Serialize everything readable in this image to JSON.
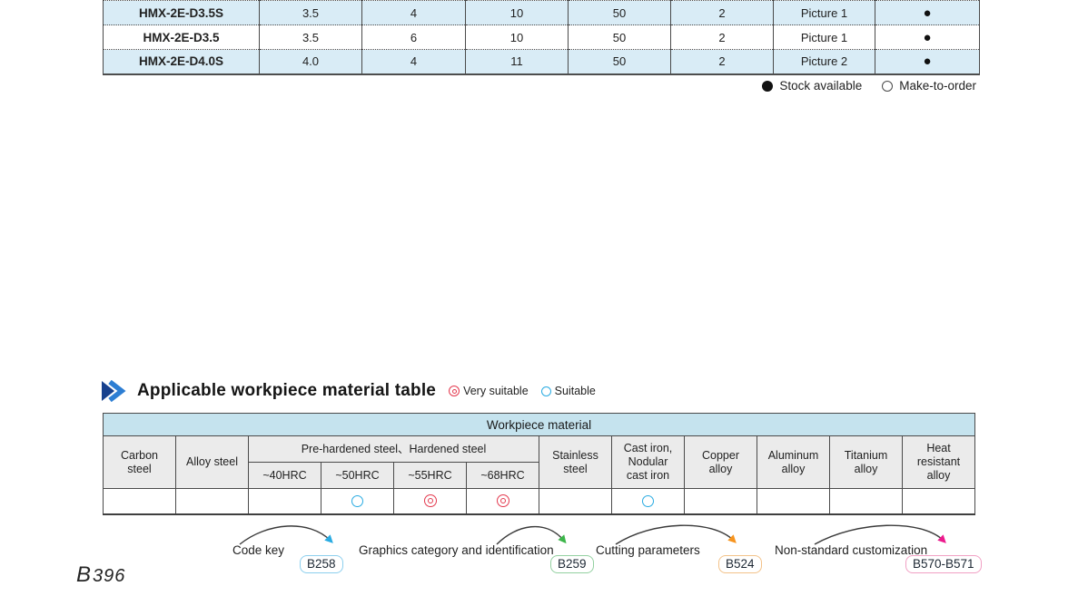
{
  "page": {
    "number_prefix": "B",
    "number": "396"
  },
  "product_table": {
    "rows": [
      {
        "model": "HMX-2E-D3.5S",
        "values": [
          "3.5",
          "4",
          "10",
          "50",
          "2",
          "Picture 1"
        ],
        "stock": "●"
      },
      {
        "model": "HMX-2E-D3.5",
        "values": [
          "3.5",
          "6",
          "10",
          "50",
          "2",
          "Picture 1"
        ],
        "stock": "●"
      },
      {
        "model": "HMX-2E-D4.0S",
        "values": [
          "4.0",
          "4",
          "11",
          "50",
          "2",
          "Picture 2"
        ],
        "stock": "●"
      }
    ],
    "legend": {
      "stock_label": "Stock available",
      "make_to_order_label": "Make-to-order"
    }
  },
  "material_section": {
    "title": "Applicable workpiece material table",
    "legend": {
      "very_suitable": "Very suitable",
      "suitable": "Suitable"
    },
    "table": {
      "header": "Workpiece material",
      "group_header": "Pre-hardened steel、Hardened steel",
      "cols": {
        "carbon": "Carbon\nsteel",
        "alloy": "Alloy steel",
        "hrc40": "~40HRC",
        "hrc50": "~50HRC",
        "hrc55": "~55HRC",
        "hrc68": "~68HRC",
        "stainless": "Stainless\nsteel",
        "cast_iron": "Cast iron,\nNodular\ncast iron",
        "copper": "Copper\nalloy",
        "aluminum": "Aluminum\nalloy",
        "titanium": "Titanium\nalloy",
        "heat": "Heat\nresistant\nalloy"
      },
      "ratings": [
        "",
        "",
        "",
        "suitable",
        "very_suitable",
        "very_suitable",
        "",
        "suitable",
        "",
        "",
        "",
        ""
      ]
    }
  },
  "footnotes": [
    {
      "label": "Code key",
      "ref": "B258"
    },
    {
      "label": "Graphics category and identification",
      "ref": "B259"
    },
    {
      "label": "Cutting parameters",
      "ref": "B524"
    },
    {
      "label": "Non-standard customization",
      "ref": "B570-B571"
    }
  ],
  "colors": {
    "accent_blue": "#29abe2",
    "accent_red": "#e4394e",
    "accent_green": "#3cb54a",
    "accent_orange": "#f7941e",
    "accent_pink": "#ec1a8d",
    "row_blue": "#d9ecf6",
    "band_blue": "#c5e3ee",
    "header_gray": "#ebebeb"
  }
}
